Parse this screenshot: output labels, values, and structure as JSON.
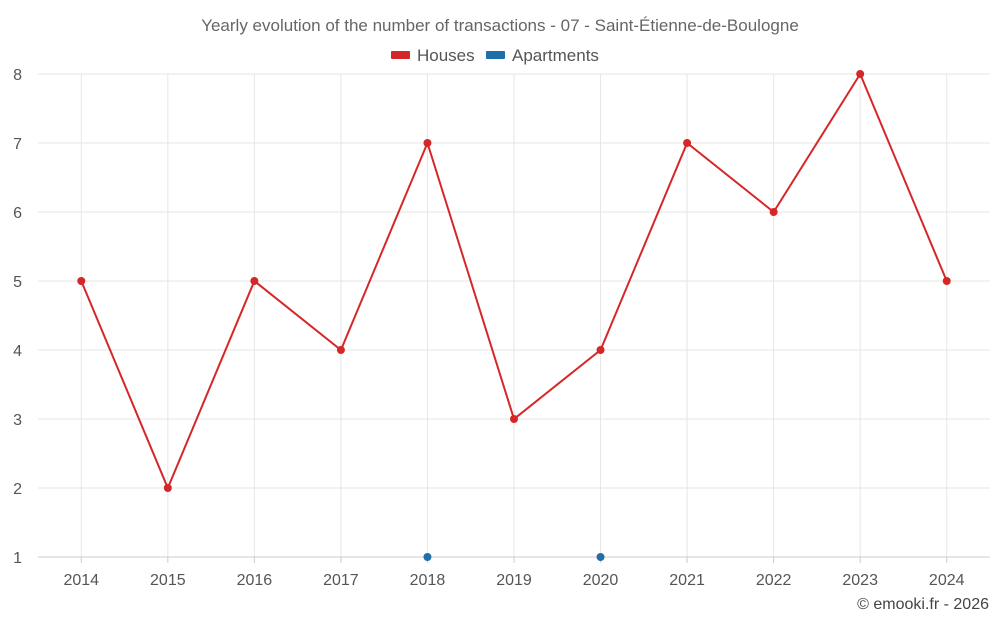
{
  "chart_data": {
    "type": "line",
    "title": "Yearly evolution of the number of transactions - 07 - Saint-Étienne-de-Boulogne",
    "categories": [
      "2014",
      "2015",
      "2016",
      "2017",
      "2018",
      "2019",
      "2020",
      "2021",
      "2022",
      "2023",
      "2024"
    ],
    "series": [
      {
        "name": "Houses",
        "color": "#d62728",
        "values": [
          5,
          2,
          5,
          4,
          7,
          3,
          4,
          7,
          6,
          8,
          5
        ],
        "line": true
      },
      {
        "name": "Apartments",
        "color": "#1f6fa8",
        "values": [
          null,
          null,
          null,
          null,
          1,
          null,
          1,
          null,
          null,
          null,
          null
        ],
        "line": false
      }
    ],
    "ylim": [
      1,
      8
    ],
    "yticks": [
      "1",
      "2",
      "3",
      "4",
      "5",
      "6",
      "7",
      "8"
    ],
    "xlabel": "",
    "ylabel": "",
    "grid": true,
    "legend": "top-center"
  },
  "credit": "© emooki.fr - 2026"
}
